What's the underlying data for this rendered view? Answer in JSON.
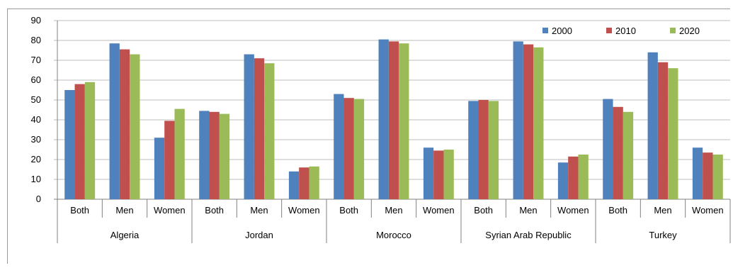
{
  "chart_data": {
    "type": "bar",
    "title": "",
    "xlabel": "",
    "ylabel": "",
    "ylim": [
      0,
      90
    ],
    "yticks": [
      0,
      10,
      20,
      30,
      40,
      50,
      60,
      70,
      80,
      90
    ],
    "grid": true,
    "legend_position": "top-right",
    "groups": [
      "Algeria",
      "Jordan",
      "Morocco",
      "Syrian Arab Republic",
      "Turkey"
    ],
    "subcategories": [
      "Both",
      "Men",
      "Women"
    ],
    "series": [
      {
        "name": "2000",
        "color": "#4f81bd",
        "values": [
          55,
          78.5,
          31,
          44.5,
          73,
          14,
          53,
          80.5,
          26,
          49.5,
          79.5,
          18.5,
          50.5,
          74,
          26
        ]
      },
      {
        "name": "2010",
        "color": "#c0504d",
        "values": [
          58,
          75.5,
          39.5,
          44,
          71,
          16,
          51,
          79.5,
          24.5,
          50,
          78,
          21.5,
          46.5,
          69,
          23.5
        ]
      },
      {
        "name": "2020",
        "color": "#9bbb59",
        "values": [
          59,
          73,
          45.5,
          43,
          68.5,
          16.5,
          50.5,
          78.5,
          25,
          49.5,
          76.5,
          22.5,
          44,
          66,
          22.5
        ]
      }
    ]
  }
}
